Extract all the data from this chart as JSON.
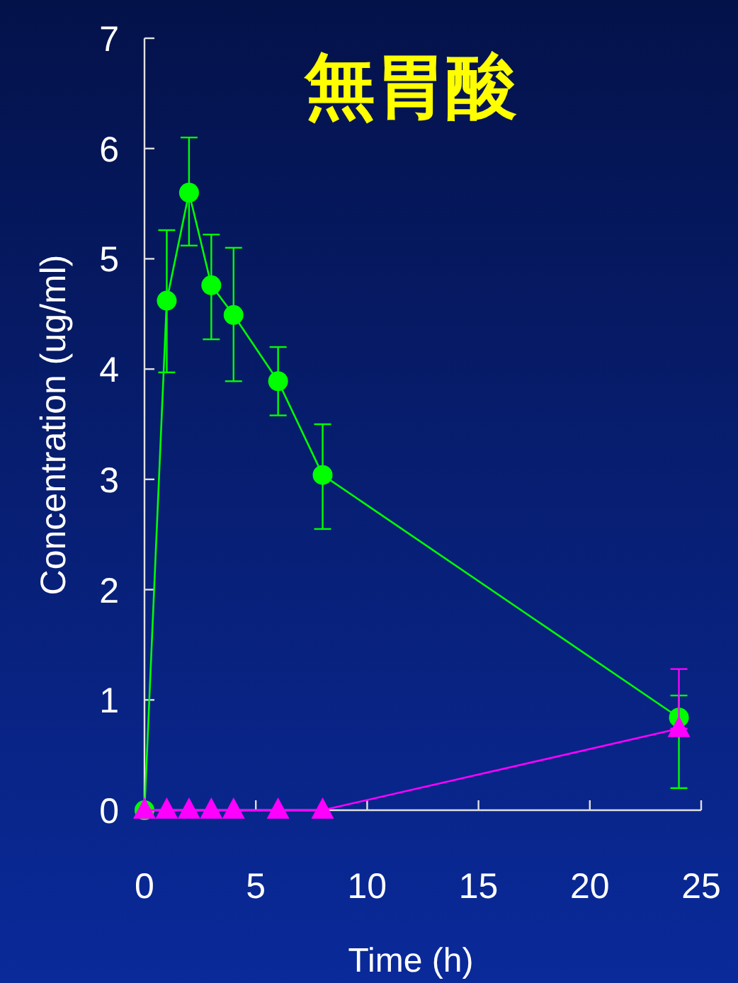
{
  "chart_data": {
    "type": "line",
    "title": "無胃酸",
    "xlabel": "Time (h)",
    "ylabel": "Concentration (ug/ml)",
    "xlim": [
      0,
      25
    ],
    "xticks": [
      0,
      5,
      10,
      15,
      20,
      25
    ],
    "ylim": [
      0,
      7
    ],
    "yticks": [
      0,
      1,
      2,
      3,
      4,
      5,
      6,
      7
    ],
    "grid": false,
    "series": [
      {
        "color": "#00ff00",
        "marker": "circle",
        "x": [
          0,
          1,
          2,
          3,
          4,
          6,
          8,
          24
        ],
        "values": [
          0,
          4.62,
          5.6,
          4.76,
          4.49,
          3.89,
          3.04,
          0.84
        ],
        "errors": [
          null,
          [
            3.97,
            5.26
          ],
          [
            5.12,
            6.1
          ],
          [
            4.27,
            5.22
          ],
          [
            3.89,
            5.1
          ],
          [
            3.58,
            4.2
          ],
          [
            2.55,
            3.5
          ],
          [
            0.2,
            1.04
          ]
        ]
      },
      {
        "color": "#ff00ff",
        "marker": "triangle",
        "x": [
          0,
          1,
          2,
          3,
          4,
          6,
          8,
          24
        ],
        "values": [
          0,
          0,
          0,
          0,
          0,
          0,
          0,
          0.74
        ],
        "errors": [
          null,
          null,
          null,
          null,
          null,
          null,
          null,
          [
            0.74,
            1.28
          ]
        ]
      }
    ]
  }
}
